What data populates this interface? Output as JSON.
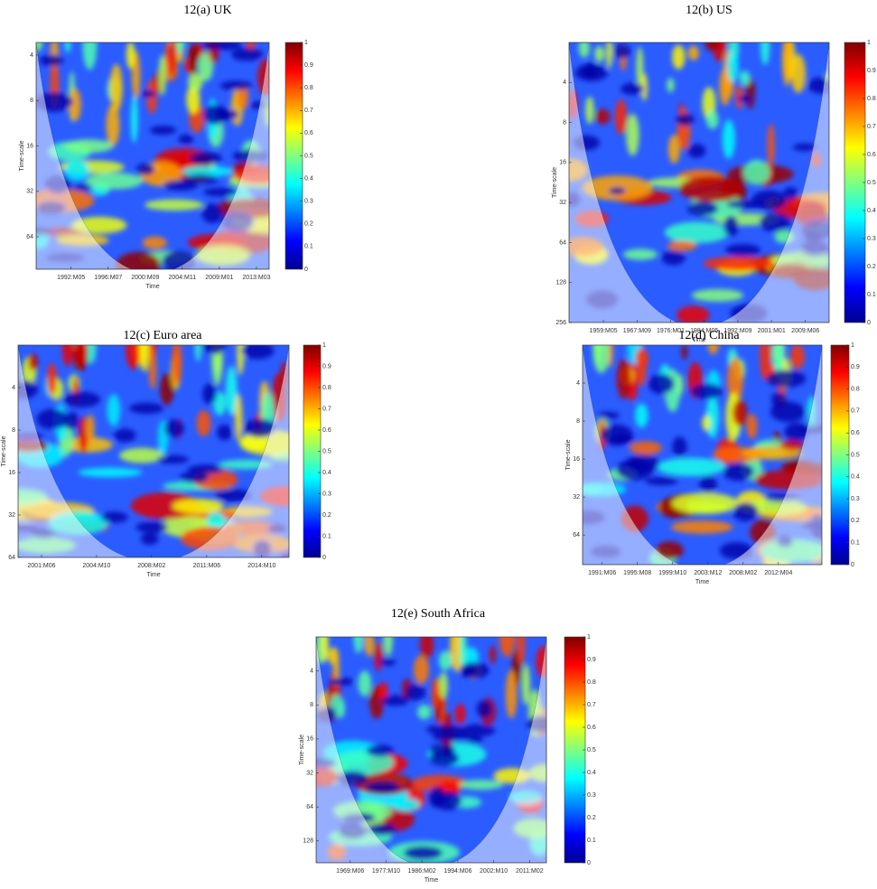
{
  "chart_data": [
    {
      "type": "heatmap",
      "title": "12(a) UK",
      "xlabel": "Time",
      "ylabel": "Time-scale",
      "yscale": "log",
      "xlim": [
        1988.4,
        2014.6
      ],
      "ylim": [
        3.3,
        105
      ],
      "xticks": [
        {
          "value": 1992.33,
          "label": "1992:M05"
        },
        {
          "value": 1996.5,
          "label": "1996:M07"
        },
        {
          "value": 2000.67,
          "label": "2000:M09"
        },
        {
          "value": 2004.83,
          "label": "2004:M11"
        },
        {
          "value": 2009.0,
          "label": "2009:M01"
        },
        {
          "value": 2013.17,
          "label": "2013:M03"
        }
      ],
      "yticks": [
        4,
        8,
        16,
        32,
        64
      ],
      "colorbar_lim": [
        0,
        1
      ],
      "colorbar_ticks": [
        0,
        0.1,
        0.2,
        0.3,
        0.4,
        0.5,
        0.6,
        0.7,
        0.8,
        0.9,
        1
      ]
    },
    {
      "type": "heatmap",
      "title": "12(b) US",
      "xlabel": "Time",
      "ylabel": "Time-scale",
      "yscale": "log",
      "xlim": [
        1950.8,
        2015.3
      ],
      "ylim": [
        2,
        256
      ],
      "xticks": [
        {
          "value": 1959.33,
          "label": "1959:M05"
        },
        {
          "value": 1967.67,
          "label": "1967:M09"
        },
        {
          "value": 1976.0,
          "label": "1976:M01"
        },
        {
          "value": 1984.33,
          "label": "1984:M05"
        },
        {
          "value": 1992.67,
          "label": "1992:M09"
        },
        {
          "value": 2001.0,
          "label": "2001:M01"
        },
        {
          "value": 2009.42,
          "label": "2009:M06"
        }
      ],
      "yticks": [
        4,
        8,
        16,
        32,
        64,
        128,
        256
      ],
      "colorbar_lim": [
        0,
        1
      ],
      "colorbar_ticks": [
        0,
        0.1,
        0.2,
        0.3,
        0.4,
        0.5,
        0.6,
        0.7,
        0.8,
        0.9,
        1
      ]
    },
    {
      "type": "heatmap",
      "title": "12(c) Euro area",
      "xlabel": "Time",
      "ylabel": "Time-scale",
      "yscale": "log",
      "xlim": [
        2000.0,
        2016.4
      ],
      "ylim": [
        2,
        64
      ],
      "xticks": [
        {
          "value": 2001.42,
          "label": "2001:M06"
        },
        {
          "value": 2004.75,
          "label": "2004:M10"
        },
        {
          "value": 2008.08,
          "label": "2008:M02"
        },
        {
          "value": 2011.42,
          "label": "2011:M06"
        },
        {
          "value": 2014.75,
          "label": "2014:M10"
        }
      ],
      "yticks": [
        4,
        8,
        16,
        32,
        64
      ],
      "colorbar_lim": [
        0,
        1
      ],
      "colorbar_ticks": [
        0,
        0.1,
        0.2,
        0.3,
        0.4,
        0.5,
        0.6,
        0.7,
        0.8,
        0.9,
        1
      ]
    },
    {
      "type": "heatmap",
      "title": "12(d) China",
      "xlabel": "Time",
      "ylabel": "Time-scale",
      "yscale": "log",
      "xlim": [
        1989.1,
        2017.4
      ],
      "ylim": [
        2,
        110
      ],
      "xticks": [
        {
          "value": 1991.42,
          "label": "1991:M06"
        },
        {
          "value": 1995.58,
          "label": "1995:M08"
        },
        {
          "value": 1999.75,
          "label": "1999:M10"
        },
        {
          "value": 2003.92,
          "label": "2003:M12"
        },
        {
          "value": 2008.08,
          "label": "2008:M02"
        },
        {
          "value": 2012.25,
          "label": "2012:M04"
        }
      ],
      "yticks": [
        4,
        8,
        16,
        32,
        64
      ],
      "colorbar_lim": [
        0,
        1
      ],
      "colorbar_ticks": [
        0,
        0.1,
        0.2,
        0.3,
        0.4,
        0.5,
        0.6,
        0.7,
        0.8,
        0.9,
        1
      ]
    },
    {
      "type": "heatmap",
      "title": "12(e) South Africa",
      "xlabel": "Time",
      "ylabel": "Time-scale",
      "yscale": "log",
      "xlim": [
        1961.5,
        2015.0
      ],
      "ylim": [
        2,
        200
      ],
      "xticks": [
        {
          "value": 1969.42,
          "label": "1969:M06"
        },
        {
          "value": 1977.75,
          "label": "1977:M10"
        },
        {
          "value": 1986.08,
          "label": "1986:M02"
        },
        {
          "value": 1994.42,
          "label": "1994:M06"
        },
        {
          "value": 2002.75,
          "label": "2002:M10"
        },
        {
          "value": 2011.08,
          "label": "2011:M02"
        }
      ],
      "yticks": [
        4,
        8,
        16,
        32,
        64,
        128
      ],
      "colorbar_lim": [
        0,
        1
      ],
      "colorbar_ticks": [
        0,
        0.1,
        0.2,
        0.3,
        0.4,
        0.5,
        0.6,
        0.7,
        0.8,
        0.9,
        1
      ]
    }
  ]
}
